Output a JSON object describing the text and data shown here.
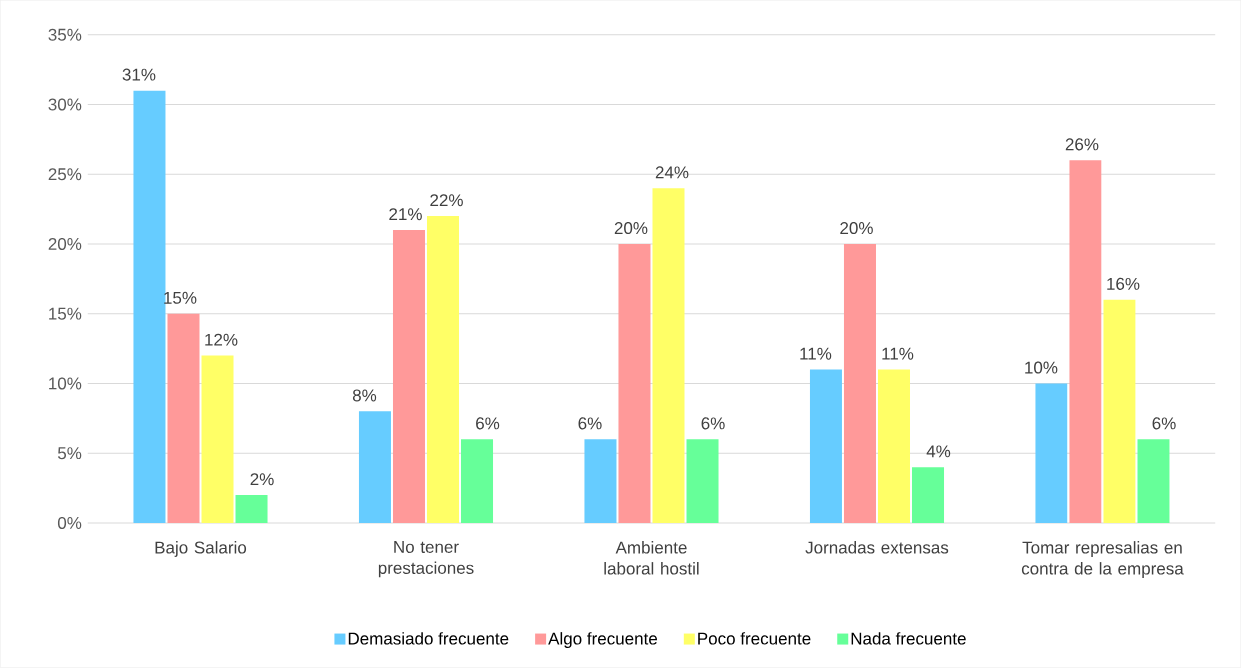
{
  "chart_data": {
    "type": "bar",
    "categories": [
      "Bajo Salario",
      "No tener prestaciones",
      "Ambiente laboral hostil",
      "Jornadas extensas",
      "Tomar represalias en contra de la empresa"
    ],
    "series": [
      {
        "name": "Demasiado frecuente",
        "color": "#66ccff",
        "values": [
          31,
          8,
          6,
          11,
          10
        ],
        "value_labels": [
          "31%",
          "8%",
          "6%",
          "11%",
          "10%"
        ]
      },
      {
        "name": "Algo frecuente",
        "color": "#ff9999",
        "values": [
          15,
          21,
          20,
          20,
          26
        ],
        "value_labels": [
          "15%",
          "21%",
          "20%",
          "20%",
          "26%"
        ]
      },
      {
        "name": "Poco frecuente",
        "color": "#ffff66",
        "values": [
          12,
          22,
          24,
          11,
          16
        ],
        "value_labels": [
          "12%",
          "22%",
          "24%",
          "11%",
          "16%"
        ]
      },
      {
        "name": "Nada frecuente",
        "color": "#66ff99",
        "values": [
          2,
          6,
          6,
          4,
          6
        ],
        "value_labels": [
          "2%",
          "6%",
          "6%",
          "4%",
          "6%"
        ]
      }
    ],
    "ylim": [
      0,
      35
    ],
    "yticks": [
      {
        "value": 0,
        "label": "0%"
      },
      {
        "value": 5,
        "label": "5%"
      },
      {
        "value": 10,
        "label": "10%"
      },
      {
        "value": 15,
        "label": "15%"
      },
      {
        "value": 20,
        "label": "20%"
      },
      {
        "value": 25,
        "label": "25%"
      },
      {
        "value": 30,
        "label": "30%"
      },
      {
        "value": 35,
        "label": "35%"
      }
    ],
    "grid": "y",
    "legend": "bottom"
  }
}
